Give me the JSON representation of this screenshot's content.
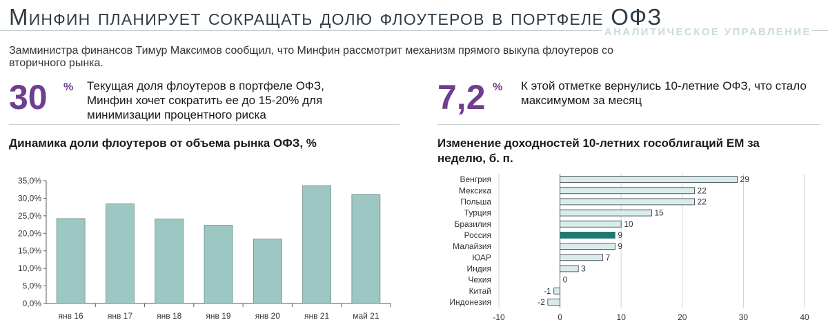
{
  "header": {
    "title": "Минфин планирует сокращать долю флоутеров в портфеле ОФЗ",
    "brand": "АНАЛИТИЧЕСКОЕ УПРАВЛЕНИЕ",
    "lead": "Замминистра финансов Тимур Максимов сообщил, что Минфин рассмотрит механизм прямого выкупа флоутеров со вторичного рынка."
  },
  "facts": [
    {
      "value": "30",
      "unit": "%",
      "text": "Текущая доля флоутеров в портфеле ОФЗ, Минфин хочет сократить ее до 15-20%  для минимизации процентного риска"
    },
    {
      "value": "7,2",
      "unit": "%",
      "text": "К этой отметке вернулись 10-летние ОФЗ, что стало максимумом за месяц"
    }
  ],
  "colors": {
    "accent": "#6f3e8e",
    "bar_fill": "#9cc7c3",
    "bar_stroke": "#6c8f8c",
    "hbar_fill": "#d9ecea",
    "hbar_highlight": "#1f7a70",
    "axis": "#595959",
    "grid": "#d0d0d0"
  },
  "chart_data": [
    {
      "type": "bar",
      "title": "Динамика доли флоутеров от объема рынка ОФЗ, %",
      "categories": [
        "янв 16",
        "янв 17",
        "янв 18",
        "янв 19",
        "янв 20",
        "янв 21",
        "май 21"
      ],
      "values": [
        24.2,
        28.4,
        24.1,
        22.3,
        18.4,
        33.6,
        31.1
      ],
      "ylim": [
        0,
        35
      ],
      "yticks": [
        0,
        5,
        10,
        15,
        20,
        25,
        30,
        35
      ],
      "ytick_labels": [
        "0,0%",
        "5,0%",
        "10,0%",
        "15,0%",
        "20,0%",
        "25,0%",
        "30,0%",
        "35,0%"
      ],
      "grid": false,
      "legend": "none"
    },
    {
      "type": "bar",
      "orientation": "horizontal",
      "title": "Изменение доходностей 10-летних гособлигаций ЕМ за неделю, б. п.",
      "categories": [
        "Венгрия",
        "Мексика",
        "Польша",
        "Турция",
        "Бразилия",
        "Россия",
        "Малайзия",
        "ЮАР",
        "Индия",
        "Чехия",
        "Китай",
        "Индонезия"
      ],
      "values": [
        29,
        22,
        22,
        15,
        10,
        9,
        9,
        7,
        3,
        0,
        -1,
        -2
      ],
      "value_labels": [
        "29",
        "22",
        "22",
        "15",
        "10",
        "9",
        "9",
        "7",
        "3",
        "0",
        "-1",
        "-2"
      ],
      "highlight": "Россия",
      "xlim": [
        -10,
        40
      ],
      "xticks": [
        -10,
        0,
        10,
        20,
        30,
        40
      ],
      "xtick_labels": [
        "-10",
        "0",
        "10",
        "20",
        "30",
        "40"
      ],
      "grid": true,
      "legend": "none"
    }
  ]
}
